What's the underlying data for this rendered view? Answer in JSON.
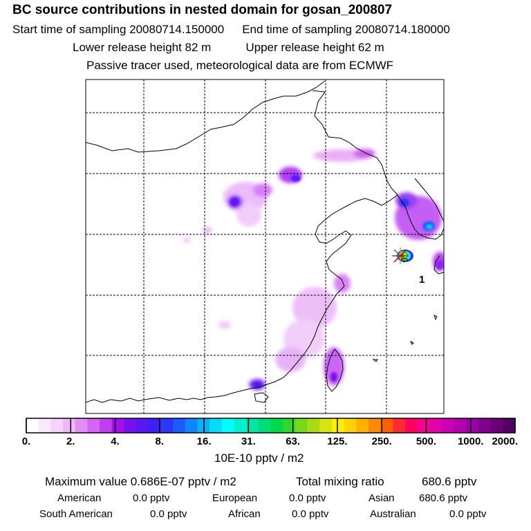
{
  "header": {
    "title": "BC  source contributions in nested domain for gosan_200807",
    "start_label": "Start time of sampling 20080714.150000",
    "end_label": "End time of sampling 20080714.180000",
    "lower_label": "Lower release height   82 m",
    "upper_label": "Upper release height   62 m",
    "tracer_note": "Passive tracer used, meteorological data are from ECMWF"
  },
  "chart_data": {
    "type": "heatmap",
    "title": "BC  source contributions in nested domain for gosan_200807",
    "receptor_label": "1",
    "colorbar": {
      "unit": "10E-10 pptv / m2",
      "tick_labels": [
        "0.",
        "2.",
        "4.",
        "8.",
        "16.",
        "31.",
        "63.",
        "125.",
        "250.",
        "500.",
        "1000.",
        "2000."
      ],
      "tick_values": [
        0,
        2,
        4,
        8,
        16,
        31,
        63,
        125,
        250,
        500,
        1000,
        2000
      ],
      "colors": [
        "#ffffff",
        "#fbe8fd",
        "#f6d2fc",
        "#efb6fa",
        "#e38df7",
        "#d565f5",
        "#c23cf2",
        "#a50ef0",
        "#7a10f2",
        "#5a17f5",
        "#3f1ff8",
        "#2a37fa",
        "#1a5cfb",
        "#0f86fc",
        "#08b2fd",
        "#04dcfd",
        "#00ffff",
        "#00f0d0",
        "#00e6a6",
        "#00dd77",
        "#00d94a",
        "#2fd82a",
        "#76d91a",
        "#a8db12",
        "#d6e410",
        "#fff000",
        "#ffd200",
        "#ffb000",
        "#ff8a00",
        "#ff5f00",
        "#ff2a30",
        "#ff0060",
        "#f4008f",
        "#e400a8",
        "#cc00b4",
        "#b200b0",
        "#9a00a3",
        "#820090",
        "#6a007a",
        "#520063"
      ]
    },
    "grid": true
  },
  "stats": {
    "max_label": "Maximum value  0.686E-07 pptv / m2",
    "total_label": "Total mixing ratio",
    "total_value": "680.6 pptv",
    "american_label": "American",
    "american_value": "0.0 pptv",
    "european_label": "European",
    "european_value": "0.0 pptv",
    "asian_label": "Asian",
    "asian_value": "680.6 pptv",
    "south_american_label": "South American",
    "south_american_value": "0.0 pptv",
    "african_label": "African",
    "african_value": "0.0 pptv",
    "australian_label": "Australian",
    "australian_value": "0.0 pptv"
  }
}
